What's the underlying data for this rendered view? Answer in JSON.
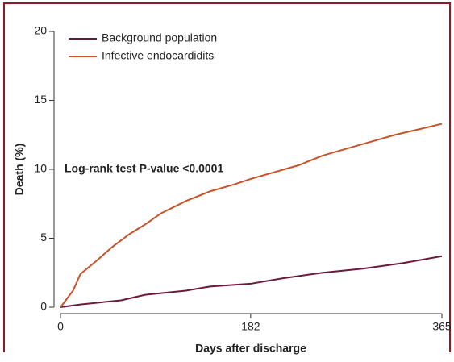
{
  "chart_data": {
    "type": "line",
    "ylabel": "Death (%)",
    "xlabel": "Days after discharge",
    "annotation": "Log-rank test P-value <0.0001",
    "xlim": [
      0,
      365
    ],
    "xticks": [
      0,
      182,
      365
    ],
    "ylim": [
      0,
      20
    ],
    "yticks": [
      0,
      5,
      10,
      15,
      20
    ],
    "legend": "upper left",
    "series": [
      {
        "name": "Background population",
        "color": "#6b1a3a",
        "x": [
          0,
          19,
          58,
          81,
          120,
          143,
          182,
          213,
          251,
          290,
          328,
          365
        ],
        "values": [
          0,
          0.2,
          0.5,
          0.9,
          1.2,
          1.5,
          1.7,
          2.1,
          2.5,
          2.8,
          3.2,
          3.7
        ]
      },
      {
        "name": "Infective endocardidits",
        "color": "#c8532a",
        "x": [
          0,
          12,
          19,
          35,
          50,
          66,
          81,
          96,
          120,
          143,
          166,
          182,
          205,
          228,
          251,
          274,
          297,
          320,
          343,
          365
        ],
        "values": [
          0,
          1.2,
          2.4,
          3.4,
          4.4,
          5.3,
          6.0,
          6.8,
          7.7,
          8.4,
          8.9,
          9.3,
          9.8,
          10.3,
          11.0,
          11.5,
          12.0,
          12.5,
          12.9,
          13.3
        ]
      }
    ]
  }
}
